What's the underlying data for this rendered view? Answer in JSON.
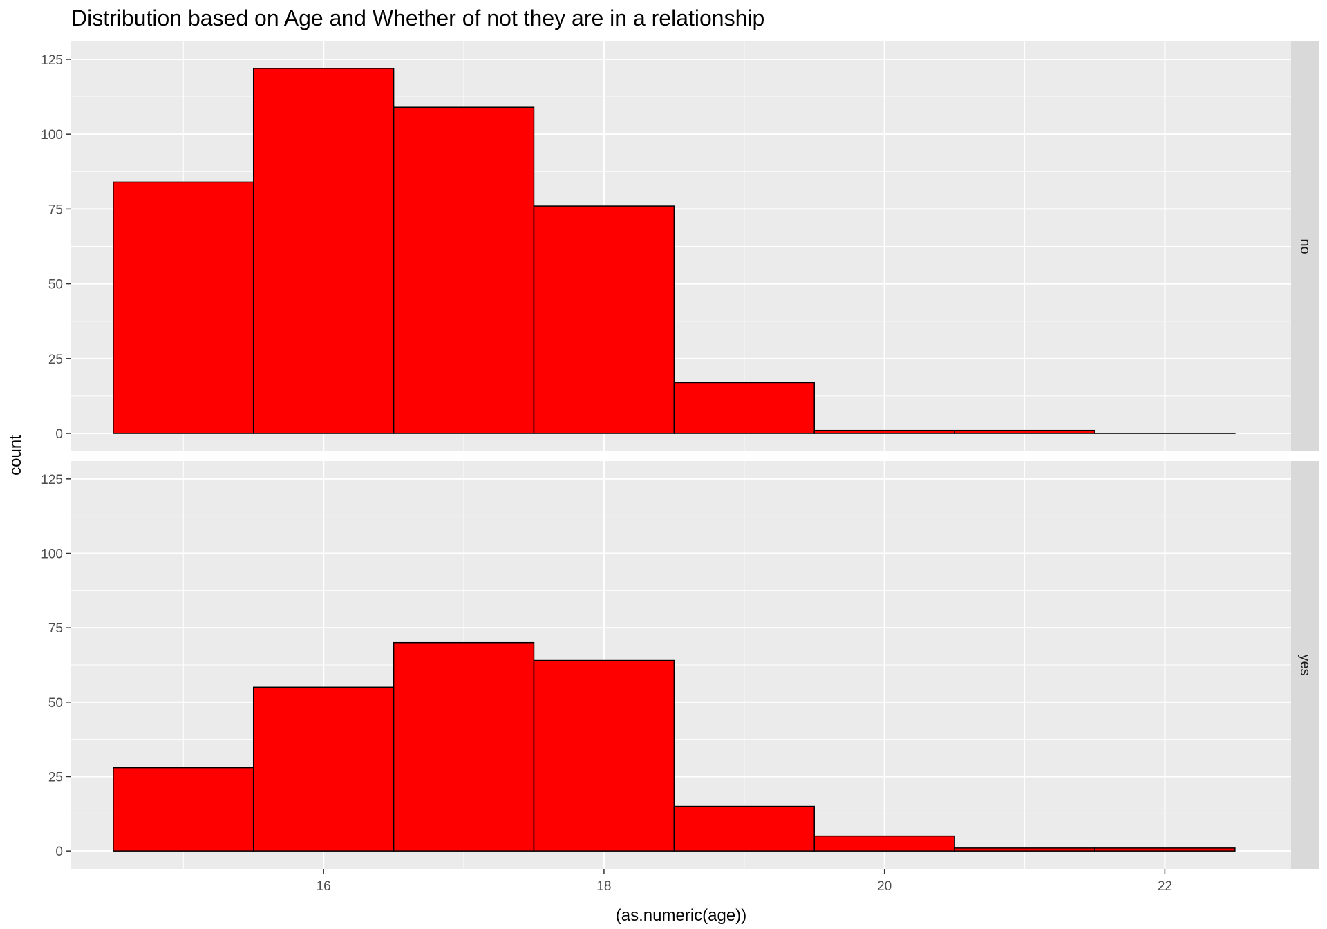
{
  "chart_data": {
    "type": "bar",
    "title": "Distribution based on Age and Whether of not they are in a relationship",
    "xlabel": "(as.numeric(age))",
    "ylabel": "count",
    "bin_width": 1,
    "bin_centers": [
      15,
      16,
      17,
      18,
      19,
      20,
      21,
      22
    ],
    "xlim": [
      14.2,
      22.9
    ],
    "ylim": [
      -6,
      131
    ],
    "x_ticks": [
      16,
      18,
      20,
      22
    ],
    "y_ticks": [
      0,
      25,
      50,
      75,
      100,
      125
    ],
    "grid": true,
    "fill_color": "#ff0000",
    "outline_color": "#000000",
    "panel_background": "#ebebeb",
    "strip_background": "#d9d9d9",
    "facets": [
      {
        "strip_label": "no",
        "counts": [
          84,
          122,
          109,
          76,
          17,
          1,
          1,
          0
        ]
      },
      {
        "strip_label": "yes",
        "counts": [
          28,
          55,
          70,
          64,
          15,
          5,
          1,
          1
        ]
      }
    ]
  }
}
